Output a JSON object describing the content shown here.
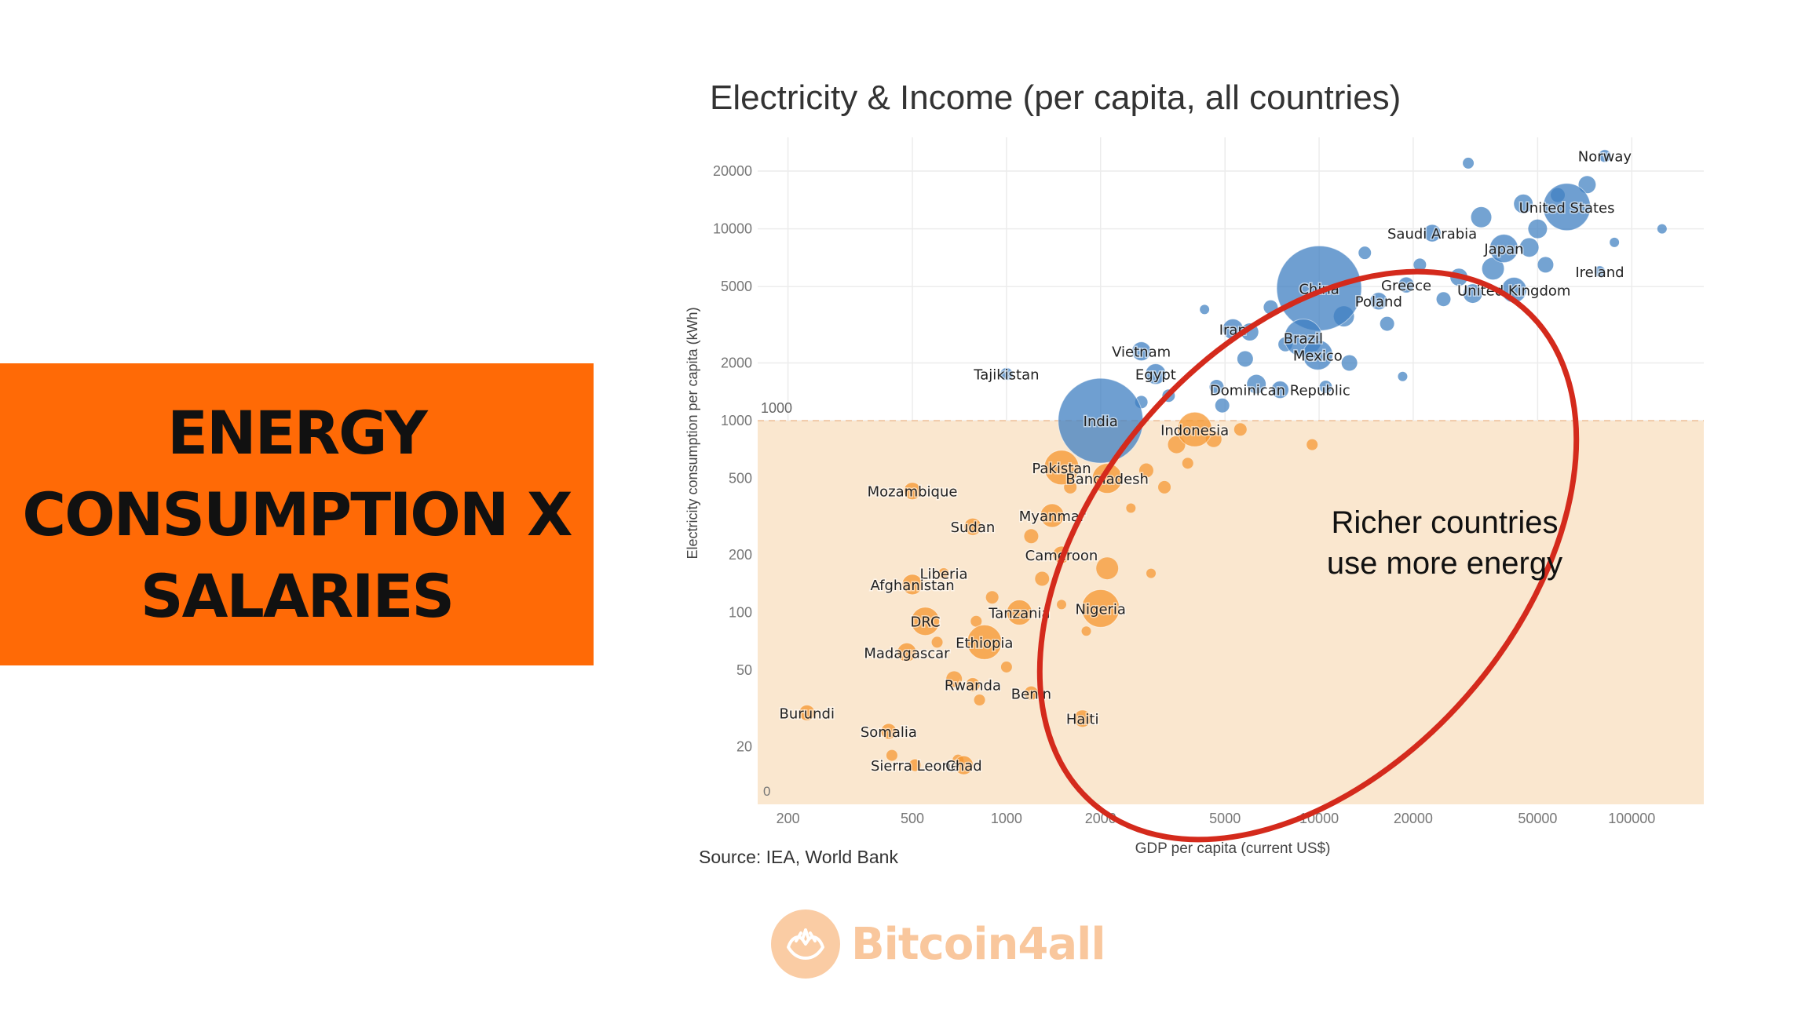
{
  "banner": {
    "lines": [
      "ENERGY",
      "CONSUMPTION X",
      "SALARIES"
    ],
    "color": "#ff6a06"
  },
  "brand": {
    "name": "Bitcoin4all",
    "icon": "hands-icon"
  },
  "chart_data": {
    "type": "scatter",
    "title": "Electricity & Income (per capita, all countries)",
    "xlabel": "GDP per capita (current US$)",
    "ylabel": "Electricity consumption per capita (kWh)",
    "source": "Source: IEA, World Bank",
    "x_scale": "log",
    "y_scale": "log",
    "xlim": [
      160,
      170000
    ],
    "ylim": [
      10,
      30000
    ],
    "x_ticks": [
      200,
      500,
      1000,
      2000,
      5000,
      10000,
      20000,
      50000,
      100000
    ],
    "y_ticks": [
      20,
      50,
      100,
      200,
      500,
      1000,
      2000,
      5000,
      10000,
      20000
    ],
    "y_tick_zero_label": "0",
    "threshold": {
      "value": 1000,
      "label": "1000"
    },
    "legend": "none",
    "grid": true,
    "colors": {
      "above": "#3f7fc1",
      "below": "#f5962e",
      "shade": "#fae7cf",
      "ellipse": "#d42a1c"
    },
    "annotation": {
      "lines": [
        "Richer countries",
        "use more energy"
      ]
    },
    "countries": [
      {
        "name": "Norway",
        "gdp": 82000,
        "kwh": 24000,
        "size": 8
      },
      {
        "name": "United States",
        "gdp": 62000,
        "kwh": 13000,
        "size": 30
      },
      {
        "name": "Saudi Arabia",
        "gdp": 23000,
        "kwh": 9500,
        "size": 11
      },
      {
        "name": "Japan",
        "gdp": 39000,
        "kwh": 7900,
        "size": 18
      },
      {
        "name": "Ireland",
        "gdp": 79000,
        "kwh": 6000,
        "size": 7
      },
      {
        "name": "China",
        "gdp": 10000,
        "kwh": 4900,
        "size": 54
      },
      {
        "name": "Greece",
        "gdp": 19000,
        "kwh": 5100,
        "size": 10
      },
      {
        "name": "Poland",
        "gdp": 15500,
        "kwh": 4200,
        "size": 11
      },
      {
        "name": "United Kingdom",
        "gdp": 42000,
        "kwh": 4800,
        "size": 16
      },
      {
        "name": "Iran",
        "gdp": 5300,
        "kwh": 3000,
        "size": 13
      },
      {
        "name": "Brazil",
        "gdp": 8900,
        "kwh": 2700,
        "size": 24
      },
      {
        "name": "Mexico",
        "gdp": 9900,
        "kwh": 2200,
        "size": 19
      },
      {
        "name": "Vietnam",
        "gdp": 2700,
        "kwh": 2300,
        "size": 12
      },
      {
        "name": "Egypt",
        "gdp": 3000,
        "kwh": 1750,
        "size": 13
      },
      {
        "name": "Dominican Republic",
        "gdp": 7500,
        "kwh": 1450,
        "size": 11
      },
      {
        "name": "Tajikistan",
        "gdp": 1000,
        "kwh": 1750,
        "size": 8
      },
      {
        "name": "India",
        "gdp": 2000,
        "kwh": 1000,
        "size": 54
      },
      {
        "name": "Indonesia",
        "gdp": 4000,
        "kwh": 900,
        "size": 22
      },
      {
        "name": "Pakistan",
        "gdp": 1500,
        "kwh": 570,
        "size": 22
      },
      {
        "name": "Bangladesh",
        "gdp": 2100,
        "kwh": 500,
        "size": 19
      },
      {
        "name": "Mozambique",
        "gdp": 500,
        "kwh": 430,
        "size": 11
      },
      {
        "name": "Myanmar",
        "gdp": 1400,
        "kwh": 320,
        "size": 15
      },
      {
        "name": "Sudan",
        "gdp": 780,
        "kwh": 280,
        "size": 11
      },
      {
        "name": "Cameroon",
        "gdp": 1500,
        "kwh": 200,
        "size": 11
      },
      {
        "name": "Liberia",
        "gdp": 630,
        "kwh": 160,
        "size": 7
      },
      {
        "name": "Afghanistan",
        "gdp": 500,
        "kwh": 140,
        "size": 13
      },
      {
        "name": "Tanzania",
        "gdp": 1100,
        "kwh": 100,
        "size": 16
      },
      {
        "name": "Nigeria",
        "gdp": 2000,
        "kwh": 105,
        "size": 24
      },
      {
        "name": "DRC",
        "gdp": 550,
        "kwh": 90,
        "size": 18
      },
      {
        "name": "Ethiopia",
        "gdp": 850,
        "kwh": 70,
        "size": 22
      },
      {
        "name": "Madagascar",
        "gdp": 480,
        "kwh": 62,
        "size": 12
      },
      {
        "name": "Rwanda",
        "gdp": 780,
        "kwh": 42,
        "size": 9
      },
      {
        "name": "Benin",
        "gdp": 1200,
        "kwh": 38,
        "size": 9
      },
      {
        "name": "Haiti",
        "gdp": 1750,
        "kwh": 28,
        "size": 11
      },
      {
        "name": "Burundi",
        "gdp": 230,
        "kwh": 30,
        "size": 10
      },
      {
        "name": "Somalia",
        "gdp": 420,
        "kwh": 24,
        "size": 10
      },
      {
        "name": "Sierra Leone",
        "gdp": 510,
        "kwh": 16,
        "size": 8
      },
      {
        "name": "Chad",
        "gdp": 730,
        "kwh": 16,
        "size": 12
      }
    ],
    "other_points": [
      {
        "gdp": 30000,
        "kwh": 22000,
        "size": 7
      },
      {
        "gdp": 45000,
        "kwh": 13500,
        "size": 12
      },
      {
        "gdp": 58000,
        "kwh": 15000,
        "size": 9
      },
      {
        "gdp": 72000,
        "kwh": 17000,
        "size": 11
      },
      {
        "gdp": 33000,
        "kwh": 11500,
        "size": 13
      },
      {
        "gdp": 50000,
        "kwh": 10000,
        "size": 12
      },
      {
        "gdp": 88000,
        "kwh": 8500,
        "size": 6
      },
      {
        "gdp": 125000,
        "kwh": 10000,
        "size": 6
      },
      {
        "gdp": 47000,
        "kwh": 8000,
        "size": 12
      },
      {
        "gdp": 53000,
        "kwh": 6500,
        "size": 10
      },
      {
        "gdp": 36000,
        "kwh": 6200,
        "size": 14
      },
      {
        "gdp": 28000,
        "kwh": 5600,
        "size": 11
      },
      {
        "gdp": 31000,
        "kwh": 4600,
        "size": 12
      },
      {
        "gdp": 25000,
        "kwh": 4300,
        "size": 9
      },
      {
        "gdp": 21000,
        "kwh": 6500,
        "size": 8
      },
      {
        "gdp": 14000,
        "kwh": 7500,
        "size": 8
      },
      {
        "gdp": 12000,
        "kwh": 3500,
        "size": 13
      },
      {
        "gdp": 16500,
        "kwh": 3200,
        "size": 9
      },
      {
        "gdp": 7000,
        "kwh": 3900,
        "size": 9
      },
      {
        "gdp": 6000,
        "kwh": 2900,
        "size": 11
      },
      {
        "gdp": 4300,
        "kwh": 3800,
        "size": 6
      },
      {
        "gdp": 5800,
        "kwh": 2100,
        "size": 10
      },
      {
        "gdp": 7800,
        "kwh": 2500,
        "size": 9
      },
      {
        "gdp": 12500,
        "kwh": 2000,
        "size": 10
      },
      {
        "gdp": 4700,
        "kwh": 1500,
        "size": 9
      },
      {
        "gdp": 6300,
        "kwh": 1550,
        "size": 12
      },
      {
        "gdp": 10500,
        "kwh": 1500,
        "size": 8
      },
      {
        "gdp": 3300,
        "kwh": 1350,
        "size": 8
      },
      {
        "gdp": 4900,
        "kwh": 1200,
        "size": 9
      },
      {
        "gdp": 2700,
        "kwh": 1250,
        "size": 8
      },
      {
        "gdp": 18500,
        "kwh": 1700,
        "size": 6
      },
      {
        "gdp": 3500,
        "kwh": 750,
        "size": 11
      },
      {
        "gdp": 4600,
        "kwh": 800,
        "size": 10
      },
      {
        "gdp": 5600,
        "kwh": 900,
        "size": 8
      },
      {
        "gdp": 9500,
        "kwh": 750,
        "size": 7
      },
      {
        "gdp": 3800,
        "kwh": 600,
        "size": 7
      },
      {
        "gdp": 2800,
        "kwh": 550,
        "size": 9
      },
      {
        "gdp": 3200,
        "kwh": 450,
        "size": 8
      },
      {
        "gdp": 2500,
        "kwh": 350,
        "size": 6
      },
      {
        "gdp": 1600,
        "kwh": 450,
        "size": 8
      },
      {
        "gdp": 1200,
        "kwh": 250,
        "size": 9
      },
      {
        "gdp": 1300,
        "kwh": 150,
        "size": 9
      },
      {
        "gdp": 2100,
        "kwh": 170,
        "size": 14
      },
      {
        "gdp": 2900,
        "kwh": 160,
        "size": 6
      },
      {
        "gdp": 900,
        "kwh": 120,
        "size": 8
      },
      {
        "gdp": 1500,
        "kwh": 110,
        "size": 6
      },
      {
        "gdp": 800,
        "kwh": 90,
        "size": 7
      },
      {
        "gdp": 680,
        "kwh": 45,
        "size": 10
      },
      {
        "gdp": 820,
        "kwh": 35,
        "size": 7
      },
      {
        "gdp": 1000,
        "kwh": 52,
        "size": 7
      },
      {
        "gdp": 1800,
        "kwh": 80,
        "size": 6
      },
      {
        "gdp": 600,
        "kwh": 70,
        "size": 7
      },
      {
        "gdp": 430,
        "kwh": 18,
        "size": 7
      },
      {
        "gdp": 700,
        "kwh": 17,
        "size": 7
      }
    ]
  }
}
